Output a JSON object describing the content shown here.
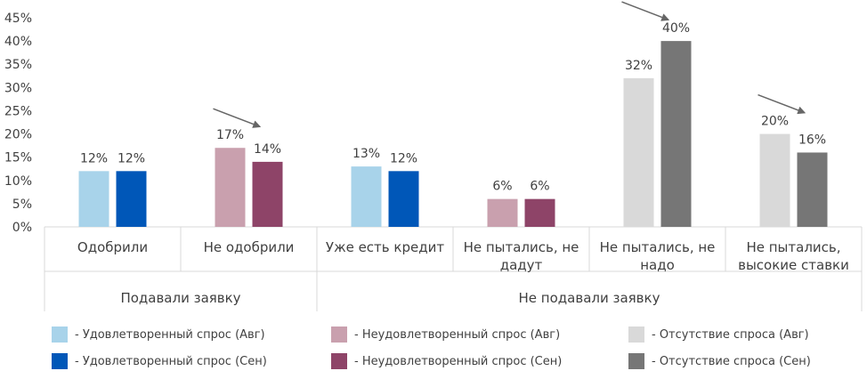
{
  "chart_data": {
    "type": "bar",
    "ylim": [
      0,
      45
    ],
    "yticks": [
      "0%",
      "5%",
      "10%",
      "15%",
      "20%",
      "25%",
      "30%",
      "35%",
      "40%",
      "45%"
    ],
    "groups": [
      {
        "label": "Подавали заявку",
        "categories": [
          {
            "label": [
              "Одобрили"
            ],
            "values": [
              12,
              12
            ],
            "labels": [
              "12%",
              "12%"
            ],
            "colors": [
              "#a8d3ea",
              "#0057b8"
            ]
          },
          {
            "label": [
              "Не одобрили"
            ],
            "values": [
              17,
              14
            ],
            "labels": [
              "17%",
              "14%"
            ],
            "colors": [
              "#c9a0ae",
              "#8e4468"
            ]
          }
        ]
      },
      {
        "label": "Не подавали заявку",
        "categories": [
          {
            "label": [
              "Уже есть кредит"
            ],
            "values": [
              13,
              12
            ],
            "labels": [
              "13%",
              "12%"
            ],
            "colors": [
              "#a8d3ea",
              "#0057b8"
            ]
          },
          {
            "label": [
              "Не пытались, не",
              "дадут"
            ],
            "values": [
              6,
              6
            ],
            "labels": [
              "6%",
              "6%"
            ],
            "colors": [
              "#c9a0ae",
              "#8e4468"
            ]
          },
          {
            "label": [
              "Не пытались, не",
              "надо"
            ],
            "values": [
              32,
              40
            ],
            "labels": [
              "32%",
              "40%"
            ],
            "colors": [
              "#d9d9d9",
              "#767676"
            ]
          },
          {
            "label": [
              "Не пытались,",
              "высокие ставки"
            ],
            "values": [
              20,
              16
            ],
            "labels": [
              "20%",
              "16%"
            ],
            "colors": [
              "#d9d9d9",
              "#767676"
            ]
          }
        ]
      }
    ],
    "trend_arrows": [
      "Не одобрили",
      "Не пытались, не надо",
      "Не пытались, высокие ставки"
    ],
    "legend": [
      {
        "label": "- Удовлетворенный спрос (Авг)",
        "color": "#a8d3ea"
      },
      {
        "label": "- Неудовлетворенный спрос (Авг)",
        "color": "#c9a0ae"
      },
      {
        "label": "- Отсутствие спроса (Авг)",
        "color": "#d9d9d9"
      },
      {
        "label": "- Удовлетворенный спрос (Сен)",
        "color": "#0057b8"
      },
      {
        "label": "- Неудовлетворенный спрос (Сен)",
        "color": "#8e4468"
      },
      {
        "label": "- Отсутствие спроса (Сен)",
        "color": "#767676"
      }
    ],
    "grid": false
  }
}
